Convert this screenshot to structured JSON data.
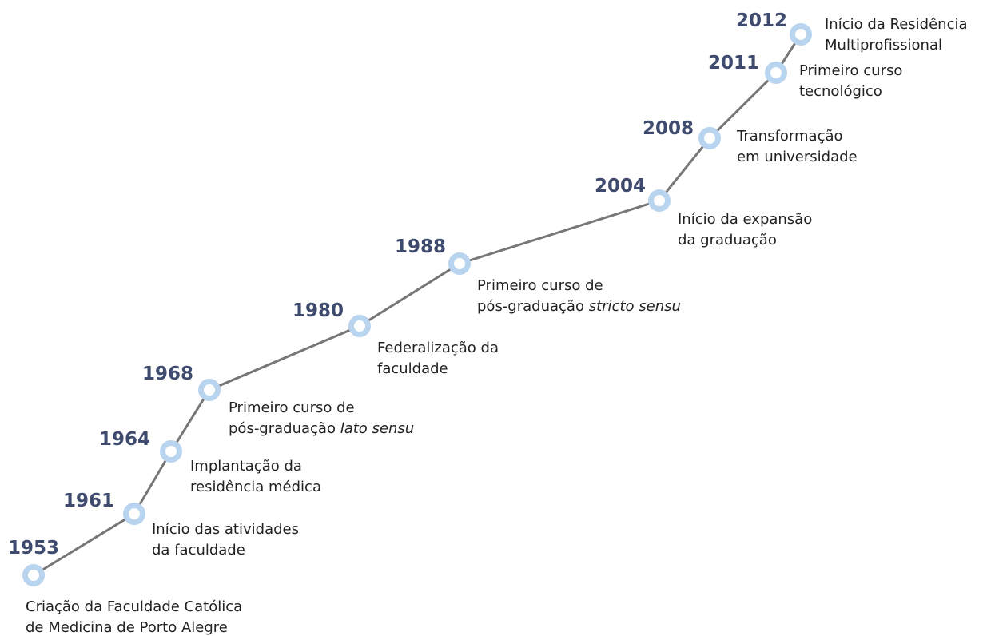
{
  "events": [
    {
      "year": 1953,
      "lines": [
        "Criação da Faculdade Católica",
        "de Medicina de Porto Alegre"
      ]
    },
    {
      "year": 1961,
      "lines": [
        "Início das atividades",
        "da faculdade"
      ]
    },
    {
      "year": 1964,
      "lines": [
        "Implantação da",
        "residência médica"
      ]
    },
    {
      "year": 1968,
      "lines": [
        "Primeiro curso de",
        "pós-graduação"
      ],
      "emphasis": "lato sensu"
    },
    {
      "year": 1980,
      "lines": [
        "Federalização da",
        "faculdade"
      ]
    },
    {
      "year": 1988,
      "lines": [
        "Primeiro curso de",
        "pós-graduação"
      ],
      "emphasis": "stricto sensu"
    },
    {
      "year": 2004,
      "lines": [
        "Início da expansão",
        "da graduação"
      ]
    },
    {
      "year": 2008,
      "lines": [
        "Transformação",
        "em universidade"
      ]
    },
    {
      "year": 2011,
      "lines": [
        "Primeiro curso",
        "tecnológico"
      ]
    },
    {
      "year": 2012,
      "lines": [
        "Início da Residência",
        "Multiprofissional"
      ]
    }
  ]
}
